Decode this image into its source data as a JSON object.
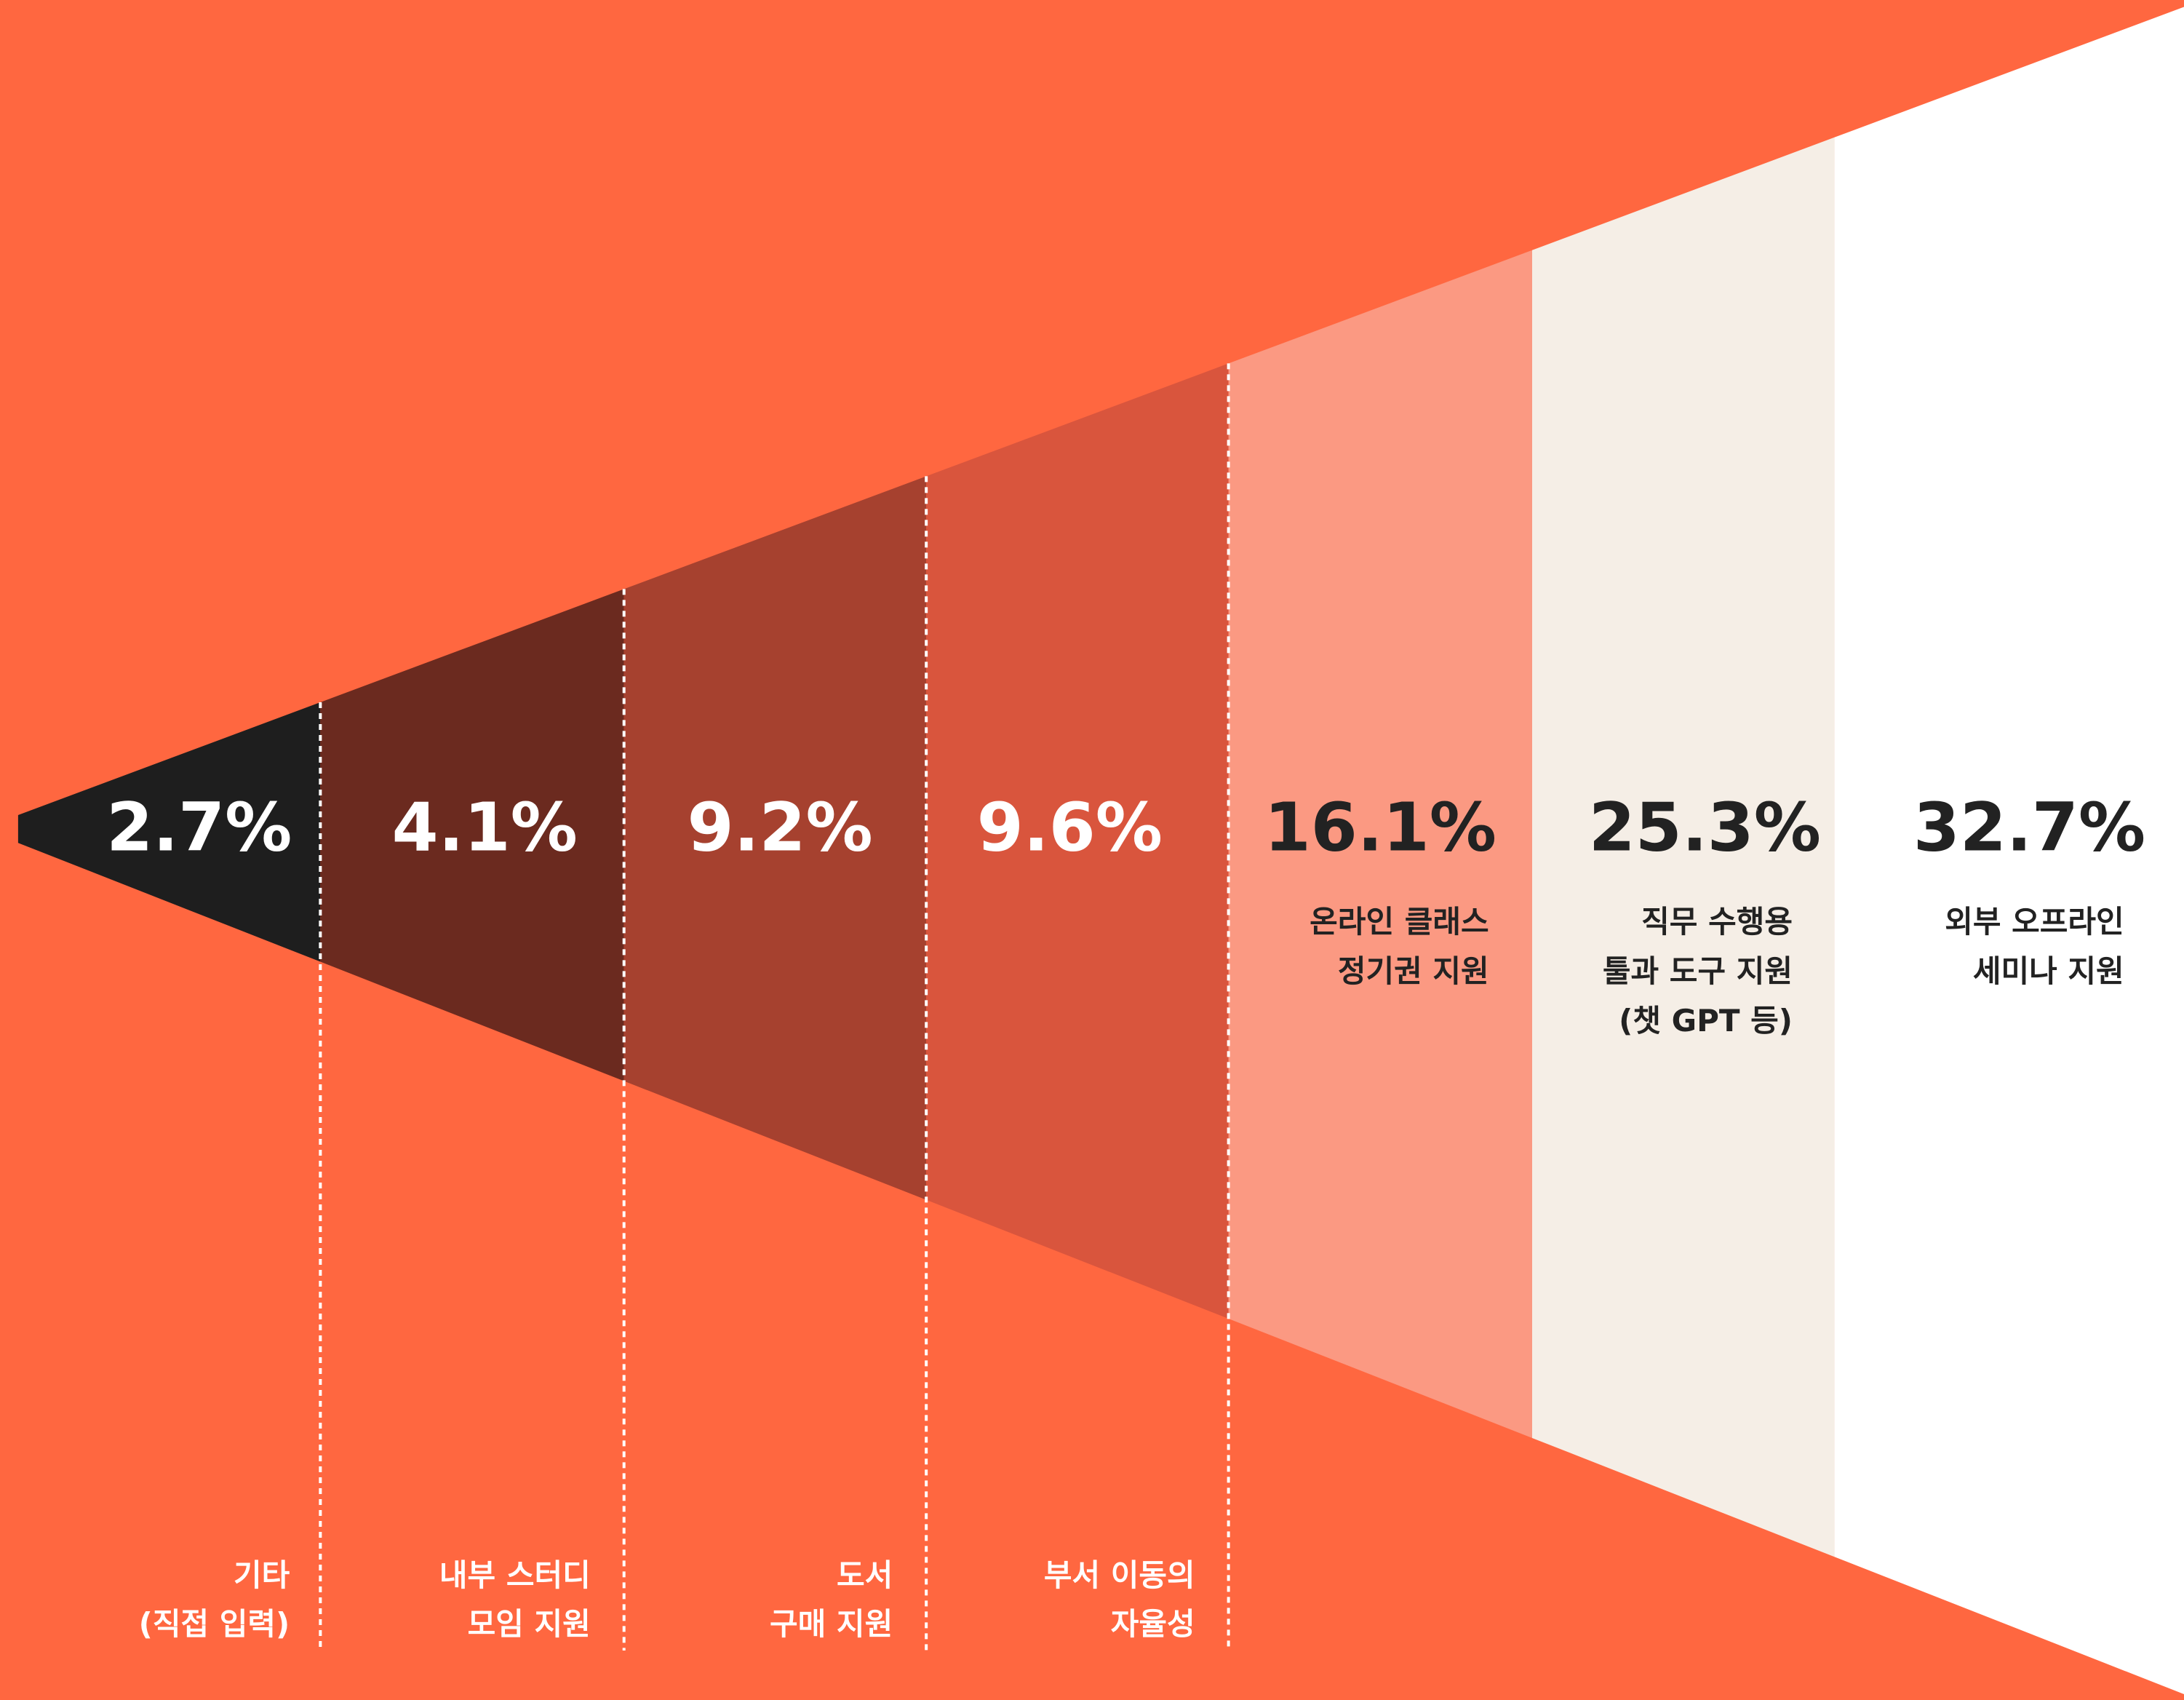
{
  "chart_data": {
    "type": "wedge",
    "categories": [
      [
        "기타",
        "(직접 입력)"
      ],
      [
        "내부 스터디",
        "모임 지원"
      ],
      [
        "도서",
        "구매 지원"
      ],
      [
        "부서 이동의",
        "자율성"
      ],
      [
        "온라인 클래스",
        "정기권 지원"
      ],
      [
        "직무 수행용",
        "툴과 도구 지원",
        "(챗 GPT 등)"
      ],
      [
        "외부 오프라인",
        "세미나 지원"
      ]
    ],
    "values": [
      2.7,
      4.1,
      9.2,
      9.6,
      16.1,
      25.3,
      32.7
    ],
    "value_labels": [
      "2.7%",
      "4.1%",
      "9.2%",
      "9.6%",
      "16.1%",
      "25.3%",
      "32.7%"
    ],
    "colors": [
      "#1e1e1e",
      "#6b2a1f",
      "#a6412f",
      "#d9553d",
      "#fb9982",
      "#f5eee6",
      "#ffffff"
    ],
    "background": "#ff6740"
  }
}
